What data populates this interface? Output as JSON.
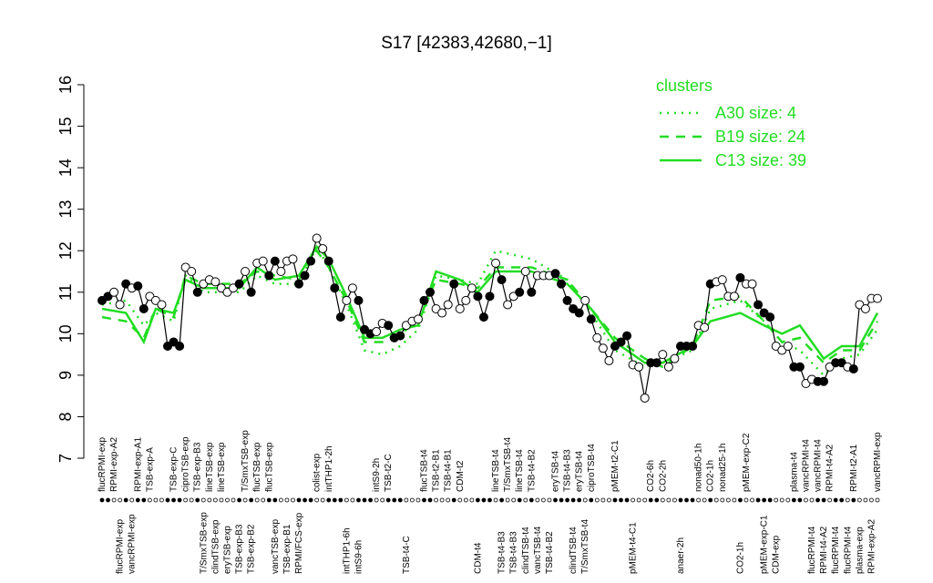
{
  "chart_data": {
    "type": "profile",
    "title": "S17 [42383,42680,−1]",
    "ylim": [
      7,
      16
    ],
    "yticks": [
      7,
      8,
      9,
      10,
      11,
      12,
      13,
      14,
      15,
      16
    ],
    "categories": [
      "flucRPMI-exp",
      null,
      "RPMI-exp-A2",
      "flucRPMI-exp",
      null,
      "vancRPMI-exp",
      "RPMI-exp-A1",
      null,
      "TSB-exp-A",
      null,
      null,
      null,
      "TSB-exp-C",
      null,
      "ciproTSB-exp",
      null,
      "TSB-exp-B3",
      "T/SmxTSB-exp",
      "lineTSB-exp",
      "clindTSB-exp",
      "lineTSB-exp",
      "eryTSB-exp",
      null,
      "TSB-exp-B3",
      "T/SmxTSB-exp",
      "TSB-exp-B2",
      "flucTSB-exp",
      null,
      "flucTSB-exp",
      "vancTSB-exp",
      null,
      "TSB-exp-B1",
      null,
      "RPMI/FCS-exp",
      null,
      null,
      "colist-exp",
      null,
      "intTHP1-2h",
      null,
      null,
      "intTHP1-6h",
      null,
      "intS9-6h",
      null,
      null,
      "intS9-2h",
      null,
      "TSB-t2-C",
      null,
      null,
      "TSB-t4-C",
      null,
      null,
      "flucTSB-t4",
      null,
      "TSB-t2-B1",
      null,
      "TSB-t4-B1",
      null,
      "CDM-t2",
      null,
      null,
      "CDM-t4",
      null,
      null,
      "lineTSB-t4",
      "TSB-t4-B3",
      "T/SmxTSB-t4",
      "TSB-t4-B3",
      "lineTSB-t4",
      "clindTSB-t4",
      "TSB-t4-B2",
      "vancTSB-t4",
      null,
      "TSB-t4-B2",
      "eryTSB-t4",
      null,
      "TSB-t4-B3",
      "clindTSB-t4",
      "eryTSB-t4",
      "T/SmxTSB-t4",
      "ciproTSB-t4",
      null,
      null,
      null,
      "pMEM-t2-C1",
      null,
      null,
      "pMEM-t4-C1",
      null,
      null,
      "CO2-6h",
      null,
      "CO2-2h",
      null,
      null,
      "anaer-2h",
      null,
      null,
      "nonad50-1h",
      null,
      "CO2-1h",
      null,
      "nonad25-1h",
      null,
      null,
      "CO2-1h",
      "pMEM-exp-C2",
      null,
      null,
      "pMEM-exp-C1",
      null,
      "CDM-exp",
      null,
      null,
      "plasma-t4",
      null,
      "vancRPMI-t4",
      "flucRPMI-t4",
      "vancRPMI-t4",
      "RPMI-t4-A2",
      "RPMI-t4-A2",
      "flucRPMI-t4",
      null,
      "flucRPMI-t4",
      "RPMI-t2-A1",
      "plasma-exp",
      null,
      "RPMI-exp-A2",
      "vancRPMI-exp"
    ],
    "values": [
      10.8,
      10.9,
      11.0,
      10.7,
      11.2,
      11.1,
      11.15,
      10.6,
      10.9,
      10.8,
      10.7,
      9.7,
      9.8,
      9.7,
      11.6,
      11.5,
      11.0,
      11.2,
      11.3,
      11.25,
      11.1,
      11.0,
      11.1,
      11.2,
      11.5,
      11.0,
      11.7,
      11.75,
      11.4,
      11.75,
      11.5,
      11.75,
      11.8,
      11.2,
      11.4,
      11.75,
      12.3,
      12.05,
      11.75,
      11.1,
      10.4,
      10.8,
      11.1,
      10.8,
      10.1,
      10.0,
      10.05,
      10.25,
      10.2,
      9.9,
      9.95,
      10.2,
      10.3,
      10.35,
      10.8,
      11.0,
      10.6,
      10.5,
      10.7,
      11.2,
      10.6,
      10.8,
      11.1,
      10.9,
      10.4,
      10.9,
      11.7,
      11.3,
      10.7,
      10.9,
      11.0,
      11.5,
      11.0,
      11.4,
      11.4,
      11.4,
      11.45,
      11.2,
      10.8,
      10.6,
      10.5,
      10.8,
      10.35,
      9.9,
      9.65,
      9.35,
      9.7,
      9.8,
      9.95,
      9.25,
      9.2,
      8.45,
      9.3,
      9.3,
      9.5,
      9.2,
      9.4,
      9.7,
      9.7,
      9.7,
      10.2,
      10.15,
      11.2,
      11.25,
      11.3,
      10.9,
      10.9,
      11.35,
      11.2,
      11.2,
      10.7,
      10.5,
      10.4,
      9.7,
      9.6,
      9.7,
      9.2,
      9.2,
      8.8,
      8.9,
      8.85,
      8.85,
      9.2,
      9.3,
      9.3,
      9.2,
      9.15,
      10.7,
      10.6,
      10.85,
      10.85
    ],
    "filled": [
      true,
      true,
      false,
      false,
      true,
      false,
      true,
      true,
      false,
      false,
      false,
      true,
      true,
      true,
      false,
      false,
      true,
      false,
      false,
      false,
      false,
      false,
      false,
      true,
      false,
      true,
      false,
      false,
      true,
      true,
      false,
      false,
      false,
      true,
      true,
      true,
      false,
      false,
      true,
      true,
      true,
      false,
      false,
      true,
      true,
      true,
      false,
      false,
      true,
      true,
      true,
      false,
      false,
      false,
      true,
      true,
      false,
      false,
      false,
      true,
      false,
      false,
      false,
      true,
      true,
      true,
      false,
      true,
      false,
      false,
      true,
      false,
      true,
      false,
      false,
      false,
      true,
      true,
      true,
      true,
      true,
      false,
      true,
      false,
      false,
      false,
      true,
      true,
      true,
      false,
      false,
      false,
      true,
      true,
      false,
      false,
      false,
      true,
      true,
      true,
      false,
      false,
      true,
      false,
      false,
      false,
      false,
      true,
      false,
      false,
      true,
      true,
      true,
      false,
      false,
      false,
      true,
      true,
      false,
      false,
      true,
      true,
      false,
      true,
      true,
      false,
      true,
      false,
      false,
      false,
      false
    ],
    "color": "#000000",
    "legend_title": "clusters",
    "series": [
      {
        "name": "A30 size: 4",
        "color": "#22dd22",
        "style": "dotted",
        "x": [
          0,
          4,
          7,
          9,
          12,
          14,
          17,
          23,
          26,
          29,
          33,
          36,
          38,
          41,
          44,
          47,
          50,
          53,
          56,
          60,
          63,
          66,
          72,
          78,
          82,
          86,
          91,
          94,
          99,
          102,
          107,
          111,
          114,
          117,
          121,
          124,
          127,
          130
        ],
        "values": [
          10.7,
          10.8,
          10.2,
          10.5,
          10.3,
          11.4,
          11.0,
          11.0,
          11.4,
          11.2,
          11.2,
          12.1,
          11.6,
          10.7,
          9.6,
          9.5,
          9.7,
          10.1,
          11.4,
          11.3,
          11.2,
          12.0,
          11.8,
          11.3,
          10.5,
          9.6,
          9.2,
          9.3,
          9.6,
          10.6,
          10.8,
          10.3,
          9.8,
          9.6,
          9.0,
          9.4,
          9.5,
          10.1
        ]
      },
      {
        "name": "B19 size: 24",
        "color": "#22dd22",
        "style": "dashed",
        "x": [
          0,
          4,
          7,
          9,
          12,
          14,
          17,
          23,
          26,
          29,
          33,
          36,
          38,
          41,
          44,
          47,
          50,
          53,
          56,
          60,
          63,
          66,
          72,
          78,
          82,
          86,
          91,
          94,
          99,
          102,
          107,
          111,
          114,
          117,
          121,
          124,
          127,
          130
        ],
        "values": [
          10.4,
          10.3,
          9.9,
          10.6,
          10.4,
          11.4,
          11.2,
          11.2,
          11.5,
          11.4,
          11.3,
          12.0,
          11.6,
          10.8,
          9.8,
          9.8,
          10.0,
          10.3,
          11.3,
          11.2,
          11.1,
          11.6,
          11.6,
          11.3,
          10.6,
          9.9,
          9.4,
          9.2,
          9.7,
          10.8,
          10.9,
          10.3,
          9.8,
          9.9,
          9.3,
          9.6,
          9.6,
          10.3
        ]
      },
      {
        "name": "C13 size: 39",
        "color": "#22dd22",
        "style": "solid",
        "x": [
          0,
          4,
          7,
          9,
          12,
          14,
          17,
          23,
          26,
          29,
          33,
          36,
          38,
          41,
          44,
          47,
          50,
          53,
          56,
          60,
          63,
          66,
          72,
          78,
          82,
          86,
          91,
          94,
          99,
          102,
          107,
          111,
          114,
          117,
          121,
          124,
          127,
          130
        ],
        "values": [
          10.6,
          10.5,
          9.8,
          10.6,
          10.5,
          11.3,
          11.1,
          11.1,
          11.6,
          11.3,
          11.4,
          12.1,
          11.8,
          10.9,
          9.9,
          9.9,
          10.1,
          10.2,
          11.5,
          11.3,
          11.0,
          11.5,
          11.5,
          11.2,
          10.6,
          9.8,
          9.3,
          9.3,
          9.7,
          10.3,
          10.5,
          10.2,
          10.0,
          10.2,
          9.4,
          9.7,
          9.7,
          10.5
        ]
      }
    ]
  }
}
